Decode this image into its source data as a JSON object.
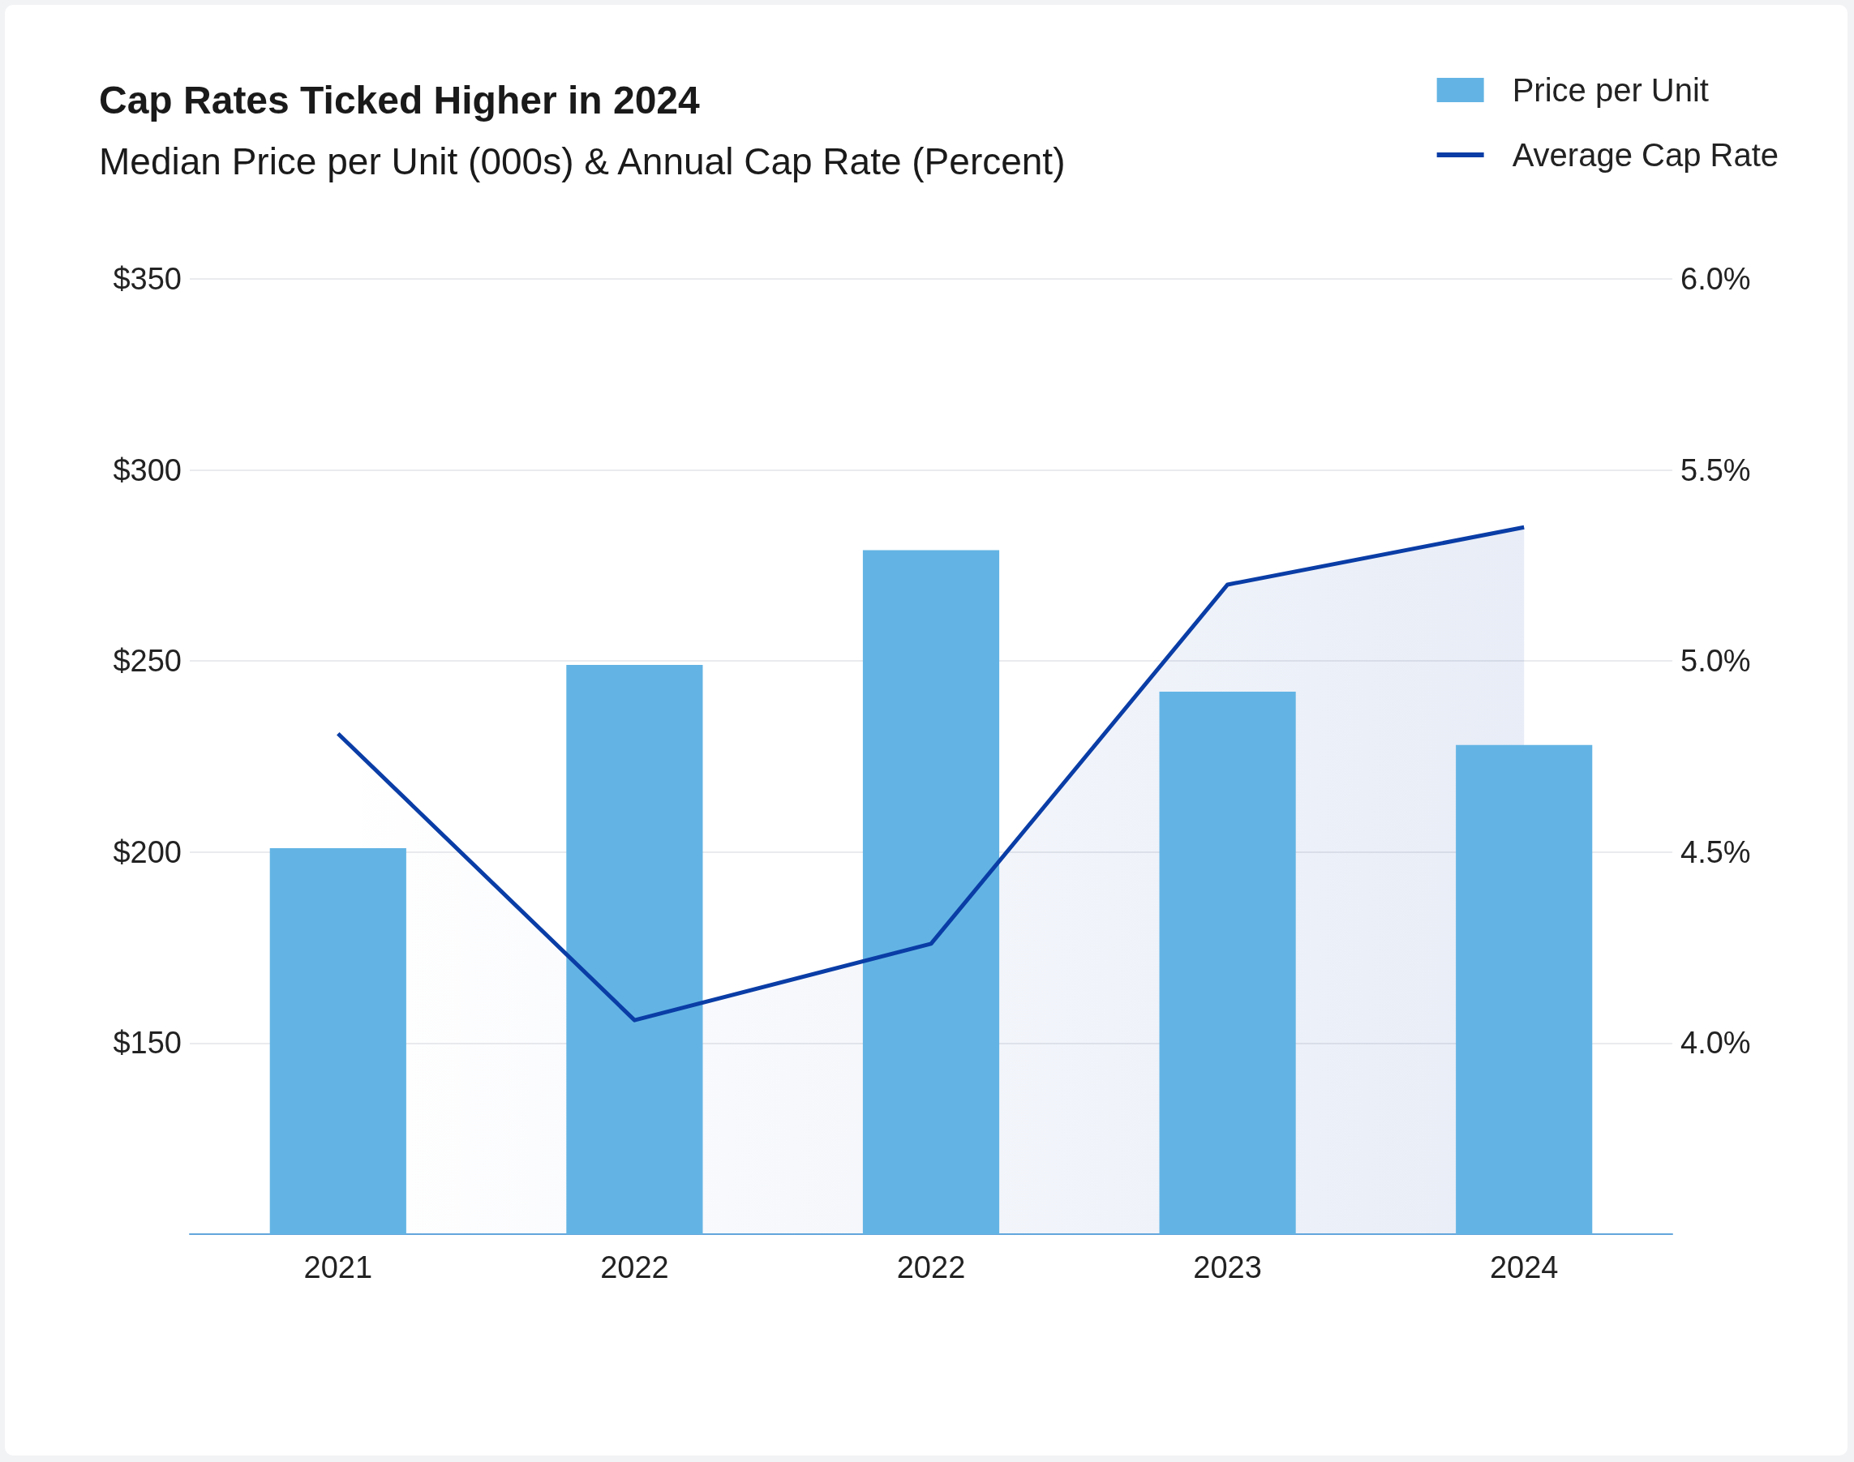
{
  "chart_data": {
    "type": "bar",
    "title": "Cap Rates Ticked Higher in 2024",
    "subtitle": "Median Price per Unit (000s) & Annual Cap Rate (Percent)",
    "categories": [
      "2021",
      "2022",
      "2022",
      "2023",
      "2024"
    ],
    "series": [
      {
        "name": "Price per Unit",
        "color": "#63b4e4",
        "values": [
          201,
          249,
          279,
          242,
          228
        ]
      },
      {
        "name": "Average Cap Rate",
        "type": "area",
        "color": "#0a3da6",
        "axis": "y2",
        "values": [
          4.81,
          4.06,
          4.26,
          5.2,
          5.35
        ]
      }
    ],
    "ylim": [
      100,
      350
    ],
    "yticks": [
      {
        "value": 150,
        "label": "$150"
      },
      {
        "value": 200,
        "label": "$200"
      },
      {
        "value": 250,
        "label": "$250"
      },
      {
        "value": 300,
        "label": "$300"
      },
      {
        "value": 350,
        "label": "$350"
      }
    ],
    "y2lim": [
      3.5,
      6.0
    ],
    "y2ticks": [
      {
        "value": 4.0,
        "label": "4.0%"
      },
      {
        "value": 4.5,
        "label": "4.5%"
      },
      {
        "value": 5.0,
        "label": "5.0%"
      },
      {
        "value": 5.5,
        "label": "5.5%"
      },
      {
        "value": 6.0,
        "label": "6.0%"
      }
    ],
    "grid": "y",
    "legend": "top right"
  }
}
